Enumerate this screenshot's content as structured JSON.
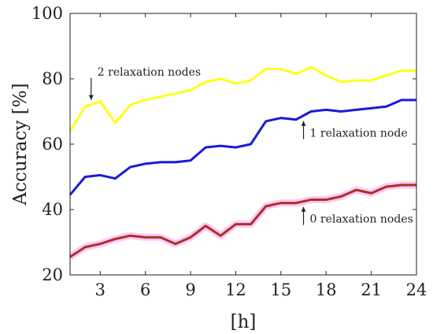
{
  "chart_data": {
    "type": "line",
    "title": "",
    "xlabel": "[h]",
    "ylabel": "Accuracy [%]",
    "xlim": [
      1,
      24
    ],
    "ylim": [
      20,
      100
    ],
    "xticks": [
      3,
      6,
      9,
      12,
      15,
      18,
      21,
      24
    ],
    "yticks": [
      20,
      40,
      60,
      80,
      100
    ],
    "grid": false,
    "x": [
      1,
      2,
      3,
      4,
      5,
      6,
      7,
      8,
      9,
      10,
      11,
      12,
      13,
      14,
      15,
      16,
      17,
      18,
      19,
      20,
      21,
      22,
      23,
      24
    ],
    "series": [
      {
        "name": "2 relaxation nodes",
        "color": "#ffff1a",
        "values": [
          64.0,
          71.5,
          73.0,
          66.5,
          72.0,
          73.5,
          74.5,
          75.5,
          76.5,
          79.0,
          80.0,
          78.5,
          79.5,
          83.0,
          83.0,
          81.5,
          83.5,
          81.0,
          79.0,
          79.5,
          79.5,
          81.0,
          82.5,
          82.5
        ]
      },
      {
        "name": "1 relaxation node",
        "color": "#1a1ad9",
        "values": [
          44.5,
          50.0,
          50.5,
          49.5,
          53.0,
          54.0,
          54.5,
          54.5,
          55.0,
          59.0,
          59.5,
          59.0,
          60.0,
          67.0,
          68.0,
          67.5,
          70.0,
          70.5,
          70.0,
          70.5,
          71.0,
          71.5,
          73.5,
          73.5
        ]
      },
      {
        "name": "0 relaxation nodes",
        "color": "#a8331f",
        "band_color": "#ff99ff",
        "values": [
          25.5,
          28.5,
          29.5,
          31.0,
          32.0,
          31.5,
          31.5,
          29.5,
          31.5,
          35.0,
          32.0,
          35.5,
          35.5,
          41.0,
          42.0,
          42.0,
          43.0,
          43.0,
          44.0,
          46.0,
          45.0,
          47.0,
          47.5,
          47.5
        ]
      }
    ],
    "annotations": [
      {
        "text": "2 relaxation nodes",
        "series": 0,
        "x": 2.4,
        "arrow": "down"
      },
      {
        "text": "1 relaxation node",
        "series": 1,
        "x": 16.5,
        "arrow": "up"
      },
      {
        "text": "0 relaxation nodes",
        "series": 2,
        "x": 16.5,
        "arrow": "up"
      }
    ]
  }
}
